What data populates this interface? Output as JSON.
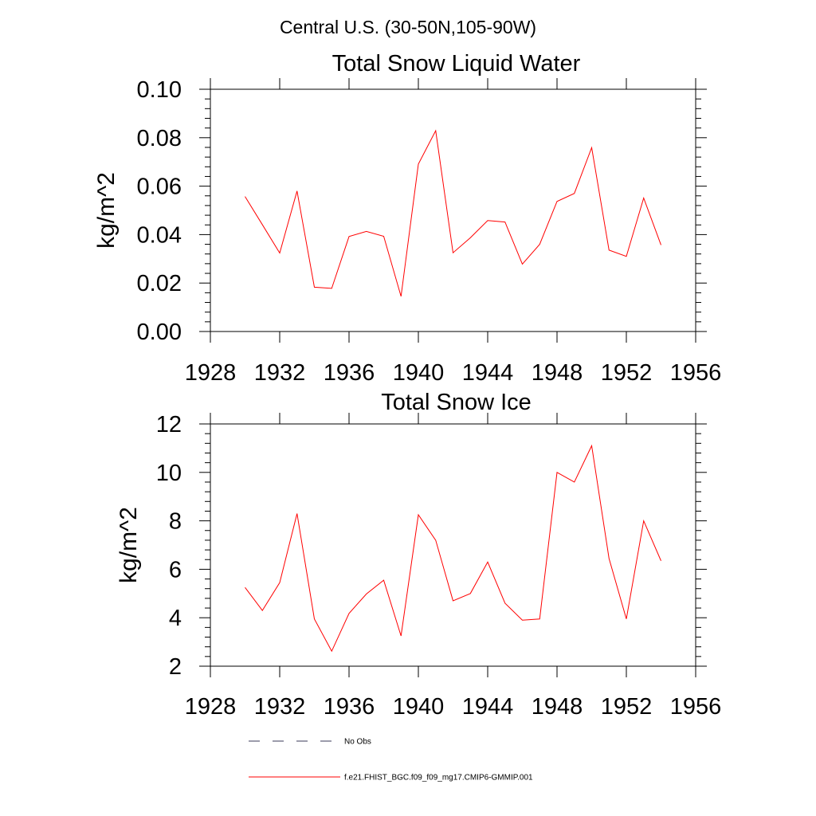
{
  "figure": {
    "title": "Central U.S. (30-50N,105-90W)"
  },
  "chart_data": [
    {
      "type": "line",
      "title": "Total Snow Liquid Water",
      "xlabel": "",
      "ylabel": "kg/m^2",
      "xlim": [
        1928,
        1956
      ],
      "ylim": [
        0.0,
        0.1
      ],
      "xticks": [
        1928,
        1932,
        1936,
        1940,
        1944,
        1948,
        1952,
        1956
      ],
      "xtick_labels": [
        "1928",
        "1932",
        "1936",
        "1940",
        "1944",
        "1948",
        "1952",
        "1956"
      ],
      "yticks": [
        0.0,
        0.02,
        0.04,
        0.06,
        0.08,
        0.1
      ],
      "ytick_labels": [
        "0.00",
        "0.02",
        "0.04",
        "0.06",
        "0.08",
        "0.10"
      ],
      "series": [
        {
          "name": "f.e21.FHIST_BGC.f09_f09_mg17.CMIP6-GMMIP.001",
          "color": "#ff0000",
          "x": [
            1930,
            1931,
            1932,
            1933,
            1934,
            1935,
            1936,
            1937,
            1938,
            1939,
            1940,
            1941,
            1942,
            1943,
            1944,
            1945,
            1946,
            1947,
            1948,
            1949,
            1950,
            1951,
            1952,
            1953,
            1954
          ],
          "values": [
            0.0557,
            0.0441,
            0.0324,
            0.058,
            0.0183,
            0.0178,
            0.0392,
            0.0413,
            0.0393,
            0.0145,
            0.0691,
            0.0829,
            0.0325,
            0.0387,
            0.0458,
            0.0452,
            0.0278,
            0.036,
            0.0537,
            0.057,
            0.0759,
            0.0336,
            0.031,
            0.0551,
            0.0357
          ]
        }
      ]
    },
    {
      "type": "line",
      "title": "Total Snow Ice",
      "xlabel": "",
      "ylabel": "kg/m^2",
      "xlim": [
        1928,
        1956
      ],
      "ylim": [
        2,
        12
      ],
      "xticks": [
        1928,
        1932,
        1936,
        1940,
        1944,
        1948,
        1952,
        1956
      ],
      "xtick_labels": [
        "1928",
        "1932",
        "1936",
        "1940",
        "1944",
        "1948",
        "1952",
        "1956"
      ],
      "yticks": [
        2,
        4,
        6,
        8,
        10,
        12
      ],
      "ytick_labels": [
        "2",
        "4",
        "6",
        "8",
        "10",
        "12"
      ],
      "series": [
        {
          "name": "f.e21.FHIST_BGC.f09_f09_mg17.CMIP6-GMMIP.001",
          "color": "#ff0000",
          "x": [
            1930,
            1931,
            1932,
            1933,
            1934,
            1935,
            1936,
            1937,
            1938,
            1939,
            1940,
            1941,
            1942,
            1943,
            1944,
            1945,
            1946,
            1947,
            1948,
            1949,
            1950,
            1951,
            1952,
            1953,
            1954
          ],
          "values": [
            5.25,
            4.3,
            5.45,
            8.3,
            3.95,
            2.62,
            4.18,
            4.98,
            5.55,
            3.25,
            8.25,
            7.2,
            4.7,
            5.0,
            6.3,
            4.6,
            3.9,
            3.95,
            10.0,
            9.6,
            11.1,
            6.45,
            3.95,
            8.0,
            6.35
          ]
        }
      ]
    }
  ],
  "legend": {
    "items": [
      {
        "label": "No Obs",
        "style": "dashed",
        "color": "#3a3a5a"
      },
      {
        "label": "f.e21.FHIST_BGC.f09_f09_mg17.CMIP6-GMMIP.001",
        "style": "solid",
        "color": "#ff0000"
      }
    ]
  }
}
